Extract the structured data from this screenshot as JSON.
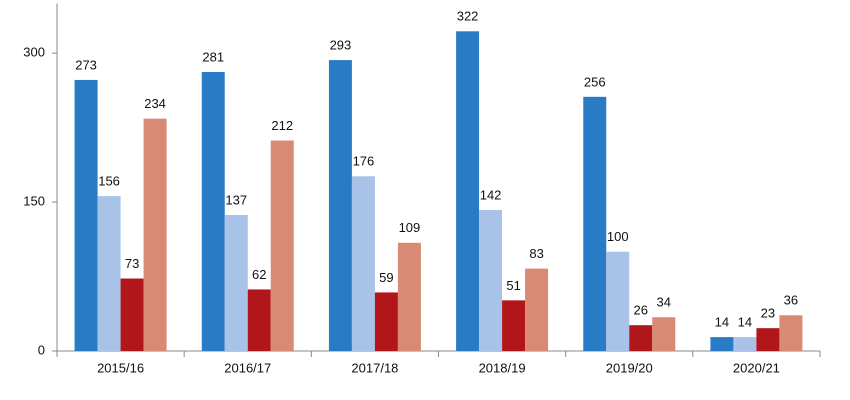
{
  "chart_data": {
    "type": "bar",
    "categories": [
      "2015/16",
      "2016/17",
      "2017/18",
      "2018/19",
      "2019/20",
      "2020/21"
    ],
    "series": [
      {
        "color": "#2a7bc6",
        "values": [
          273,
          281,
          293,
          322,
          256,
          14
        ]
      },
      {
        "color": "#a9c2e8",
        "values": [
          156,
          137,
          176,
          142,
          100,
          14
        ]
      },
      {
        "color": "#b0161a",
        "values": [
          73,
          62,
          59,
          51,
          26,
          23
        ]
      },
      {
        "color": "#d98a74",
        "values": [
          234,
          212,
          109,
          83,
          34,
          36
        ]
      }
    ],
    "ylim": [
      0,
      350
    ],
    "yticks": [
      0,
      150,
      300
    ]
  }
}
